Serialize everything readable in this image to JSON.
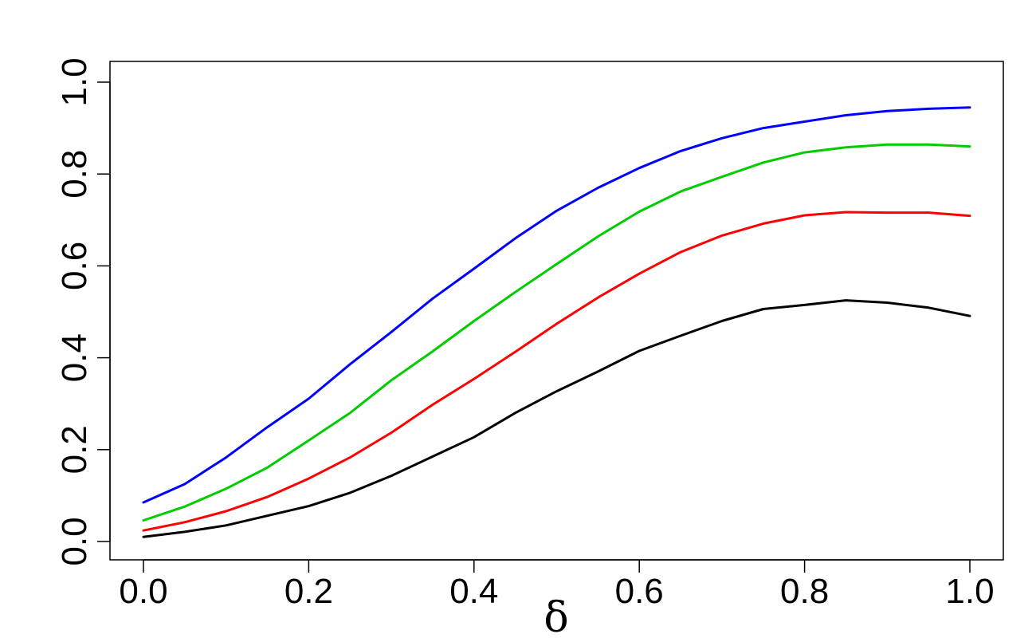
{
  "chart_data": {
    "type": "line",
    "xlabel": "δ",
    "ylabel": "",
    "title": "",
    "xlim": [
      0.0,
      1.0
    ],
    "ylim": [
      0.0,
      1.0
    ],
    "x_ticks": [
      "0.0",
      "0.2",
      "0.4",
      "0.6",
      "0.8",
      "1.0"
    ],
    "y_ticks": [
      "0.0",
      "0.2",
      "0.4",
      "0.6",
      "0.8",
      "1.0"
    ],
    "grid": false,
    "legend": "none",
    "x": [
      0.0,
      0.05,
      0.1,
      0.15,
      0.2,
      0.25,
      0.3,
      0.35,
      0.4,
      0.45,
      0.5,
      0.55,
      0.6,
      0.65,
      0.7,
      0.75,
      0.8,
      0.85,
      0.9,
      0.95,
      1.0
    ],
    "series": [
      {
        "color": "#0000ff",
        "values": [
          0.085,
          0.125,
          0.183,
          0.249,
          0.311,
          0.386,
          0.456,
          0.529,
          0.594,
          0.66,
          0.72,
          0.77,
          0.813,
          0.85,
          0.878,
          0.9,
          0.914,
          0.928,
          0.937,
          0.942,
          0.945
        ]
      },
      {
        "color": "#00cc00",
        "values": [
          0.046,
          0.076,
          0.115,
          0.161,
          0.22,
          0.28,
          0.351,
          0.414,
          0.48,
          0.543,
          0.604,
          0.664,
          0.718,
          0.762,
          0.794,
          0.825,
          0.847,
          0.858,
          0.864,
          0.864,
          0.86
        ]
      },
      {
        "color": "#ff0000",
        "values": [
          0.024,
          0.042,
          0.066,
          0.097,
          0.137,
          0.183,
          0.237,
          0.298,
          0.354,
          0.413,
          0.474,
          0.531,
          0.583,
          0.63,
          0.666,
          0.692,
          0.71,
          0.717,
          0.716,
          0.716,
          0.709
        ]
      },
      {
        "color": "#000000",
        "values": [
          0.01,
          0.021,
          0.035,
          0.056,
          0.077,
          0.106,
          0.143,
          0.185,
          0.227,
          0.28,
          0.327,
          0.37,
          0.415,
          0.448,
          0.48,
          0.506,
          0.515,
          0.525,
          0.52,
          0.509,
          0.491
        ]
      }
    ]
  }
}
